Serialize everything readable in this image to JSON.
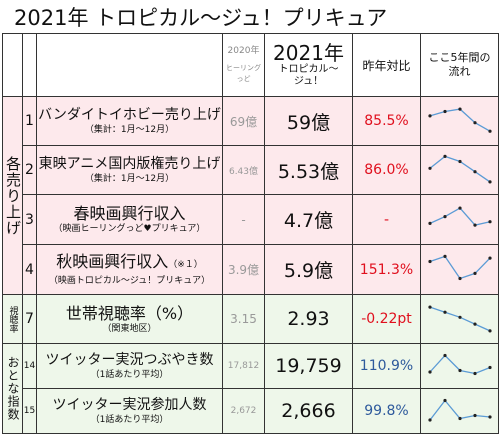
{
  "title": "2021年 トロピカル〜ジュ！プリキュア",
  "header": {
    "prev_year": "2020年",
    "prev_title": "ヒーリングっど",
    "cur_year": "2021年",
    "cur_title_1": "トロピカル〜",
    "cur_title_2": "ジュ！",
    "ratio": "昨年対比",
    "trend_1": "ここ5年間の",
    "trend_2": "流れ"
  },
  "categories": {
    "sales": "各売り上げ",
    "rating": "視聴率",
    "otona": "おとな指数"
  },
  "rows": [
    {
      "no": "1",
      "item": "バンダイトイホビー売り上げ",
      "sub": "（集計：1月〜12月）",
      "prev": "69億",
      "cur": "59億",
      "ratio": "85.5%",
      "ratio_color": "#e0101e",
      "trend": [
        0.65,
        0.78,
        0.85,
        0.45,
        0.2
      ]
    },
    {
      "no": "2",
      "item": "東映アニメ国内版権売り上げ",
      "sub": "（集計：1月〜12月）",
      "prev": "6.43億",
      "cur": "5.53億",
      "ratio": "86.0%",
      "ratio_color": "#e0101e",
      "trend": [
        0.55,
        0.9,
        0.75,
        0.45,
        0.15
      ]
    },
    {
      "no": "3",
      "item": "春映画興行収入",
      "sub": "（映画ヒーリングっど♥プリキュア）",
      "prev": "-",
      "cur": "4.7億",
      "ratio": "-",
      "ratio_color": "#e0101e",
      "trend": [
        0.4,
        0.6,
        0.85,
        0.35,
        0.45
      ]
    },
    {
      "no": "4",
      "item": "秋映画興行収入",
      "sub_note": "（※１）",
      "sub": "（映画トロピカル〜ジュ！プリキュア）",
      "prev": "3.9億",
      "cur": "5.9億",
      "ratio": "151.3%",
      "ratio_color": "#e0101e",
      "trend": [
        0.75,
        0.9,
        0.25,
        0.4,
        0.85
      ]
    },
    {
      "no": "7",
      "item": "世帯視聴率（%）",
      "sub": "（関東地区）",
      "prev": "3.15",
      "cur": "2.93",
      "ratio": "-0.22pt",
      "ratio_color": "#e0101e",
      "trend": [
        0.85,
        0.7,
        0.55,
        0.35,
        0.15
      ]
    },
    {
      "no": "14",
      "item": "ツイッター実況つぶやき数",
      "sub": "（1話あたり平均）",
      "prev": "17,812",
      "cur": "19,759",
      "ratio": "110.9%",
      "ratio_color": "#2e5a9c",
      "trend": [
        0.3,
        0.85,
        0.35,
        0.25,
        0.45
      ]
    },
    {
      "no": "15",
      "item": "ツイッター実況参加人数",
      "sub": "（1話あたり平均）",
      "prev": "2,672",
      "cur": "2,666",
      "ratio": "99.8%",
      "ratio_color": "#2e5a9c",
      "trend": [
        0.2,
        0.85,
        0.25,
        0.35,
        0.3
      ]
    }
  ]
}
